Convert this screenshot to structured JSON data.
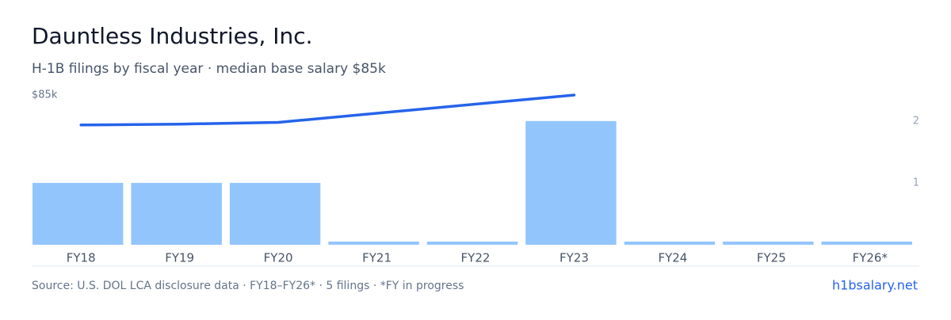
{
  "title": "Dauntless Industries, Inc.",
  "subtitle": "H-1B filings by fiscal year · median base salary $85k",
  "chart_data": {
    "type": "bar",
    "categories": [
      "FY18",
      "FY19",
      "FY20",
      "FY21",
      "FY22",
      "FY23",
      "FY24",
      "FY25",
      "FY26*"
    ],
    "series": [
      {
        "type": "bar",
        "axis": "y2",
        "color": "#93c5fd",
        "values": [
          1,
          1,
          1,
          0,
          0,
          2,
          0,
          0,
          0
        ]
      },
      {
        "type": "line",
        "color": "#2563eb",
        "x": [
          "FY18",
          "FY19",
          "FY20",
          "FY23"
        ],
        "values": [
          68000,
          68500,
          69500,
          85000
        ]
      }
    ],
    "ylim": [
      0,
      85000
    ],
    "yticks": [
      {
        "value": 85000,
        "label": "$85k"
      }
    ],
    "y2lim": [
      0,
      2.42
    ],
    "y2ticks": [
      1,
      2
    ]
  },
  "footer": {
    "source": "Source: U.S. DOL LCA disclosure data · FY18–FY26* · 5 filings · *FY in progress",
    "link": "h1bsalary.net"
  }
}
